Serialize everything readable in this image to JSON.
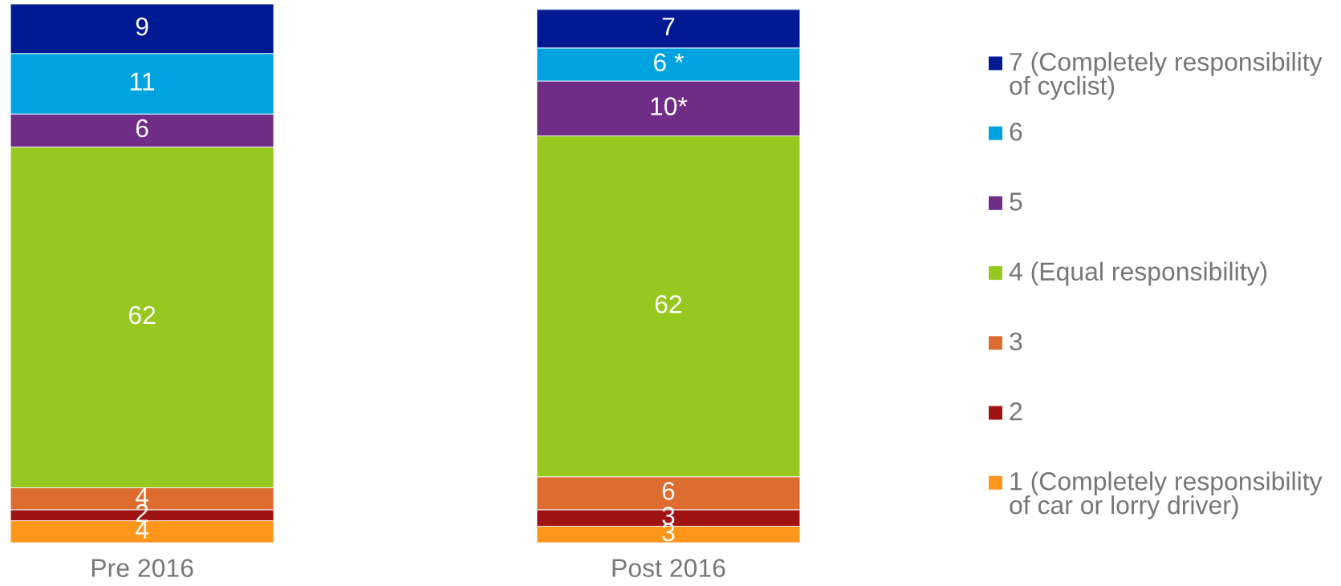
{
  "chart_data": {
    "type": "bar",
    "stacked": true,
    "categories": [
      "Pre 2016",
      "Post 2016"
    ],
    "legend": "right",
    "series": [
      {
        "name": "1 (Completely responsibility of car or lorry driver)",
        "color": "#fe961c",
        "values": [
          4,
          3
        ],
        "value_labels": [
          "4",
          "3"
        ]
      },
      {
        "name": "2",
        "color": "#a01313",
        "values": [
          2,
          3
        ],
        "value_labels": [
          "2",
          "3"
        ]
      },
      {
        "name": "3",
        "color": "#dd6c30",
        "values": [
          4,
          6
        ],
        "value_labels": [
          "4",
          "6"
        ]
      },
      {
        "name": "4 (Equal responsibility)",
        "color": "#97c81f",
        "values": [
          62,
          62
        ],
        "value_labels": [
          "62",
          "62"
        ]
      },
      {
        "name": "5",
        "color": "#702d88",
        "values": [
          6,
          10
        ],
        "value_labels": [
          "6",
          "10*"
        ]
      },
      {
        "name": "6",
        "color": "#00a3e0",
        "values": [
          11,
          6
        ],
        "value_labels": [
          "11",
          "6 *"
        ]
      },
      {
        "name": "7 (Completely responsibility of cyclist)",
        "color": "#001a94",
        "values": [
          9,
          7
        ],
        "value_labels": [
          "9",
          "7"
        ]
      }
    ]
  }
}
